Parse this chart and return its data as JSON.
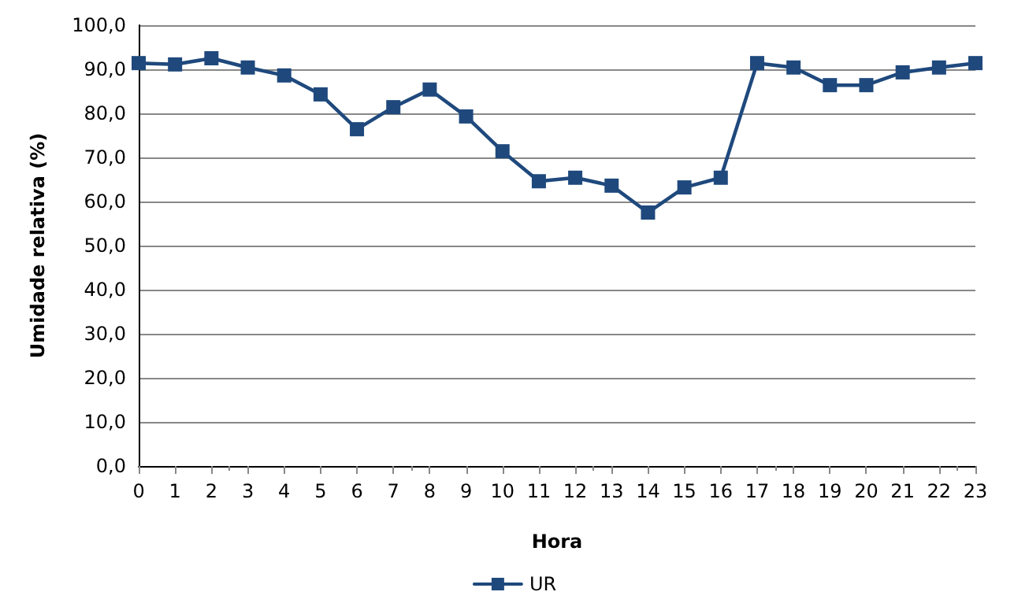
{
  "chart_data": {
    "type": "line",
    "xlabel": "Hora",
    "ylabel": "Umidade relativa (%)",
    "x": [
      0,
      1,
      2,
      3,
      4,
      5,
      6,
      7,
      8,
      9,
      10,
      11,
      12,
      13,
      14,
      15,
      16,
      17,
      18,
      19,
      20,
      21,
      22,
      23
    ],
    "series": [
      {
        "name": "UR",
        "color": "#1f497d",
        "values": [
          91.4,
          91.1,
          92.5,
          90.4,
          88.6,
          84.3,
          76.4,
          81.4,
          85.4,
          79.3,
          71.4,
          64.6,
          65.4,
          63.6,
          57.5,
          63.2,
          65.4,
          91.4,
          90.4,
          86.4,
          86.4,
          89.3,
          90.4,
          91.4
        ]
      }
    ],
    "xlim": [
      0,
      23
    ],
    "xticks": [
      0,
      1,
      2,
      3,
      4,
      5,
      6,
      7,
      8,
      9,
      10,
      11,
      12,
      13,
      14,
      15,
      16,
      17,
      18,
      19,
      20,
      21,
      22,
      23
    ],
    "ylim": [
      0,
      100
    ],
    "yticks": [
      {
        "value": 0,
        "label": "0,0"
      },
      {
        "value": 10,
        "label": "10,0"
      },
      {
        "value": 20,
        "label": "20,0"
      },
      {
        "value": 30,
        "label": "30,0"
      },
      {
        "value": 40,
        "label": "40,0"
      },
      {
        "value": 50,
        "label": "50,0"
      },
      {
        "value": 60,
        "label": "60,0"
      },
      {
        "value": 70,
        "label": "70,0"
      },
      {
        "value": 80,
        "label": "80,0"
      },
      {
        "value": 90,
        "label": "90,0"
      },
      {
        "value": 100,
        "label": "100,0"
      }
    ],
    "grid": "y",
    "legend": "bottom",
    "marker": "square",
    "line_style": "solid"
  }
}
